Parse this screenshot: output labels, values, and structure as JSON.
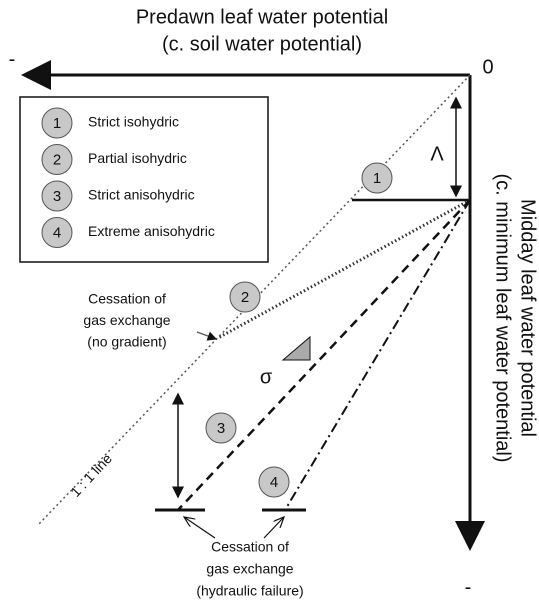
{
  "header": {
    "title": "Predawn leaf water potential",
    "subtitle": "(c. soil water potential)"
  },
  "axes": {
    "x_minus": "-",
    "origin": "0",
    "y_minus": "-",
    "y_title": "Midday leaf water potential",
    "y_subtitle": "(c. minimum leaf water potential)"
  },
  "legend": [
    {
      "number": "1",
      "label": "Strict  isohydric"
    },
    {
      "number": "2",
      "label": "Partial isohydric"
    },
    {
      "number": "3",
      "label": "Strict anisohydric"
    },
    {
      "number": "4",
      "label": "Extreme anisohydric"
    }
  ],
  "symbols": {
    "lambda": "Λ",
    "sigma": "σ"
  },
  "one_to_one": "1 : 1 line",
  "annotations": {
    "no_gradient": [
      "Cessation of",
      "gas exchange",
      "(no gradient)"
    ],
    "hydraulic_failure": [
      "Cessation of",
      "gas exchange",
      "(hydraulic failure)"
    ]
  }
}
